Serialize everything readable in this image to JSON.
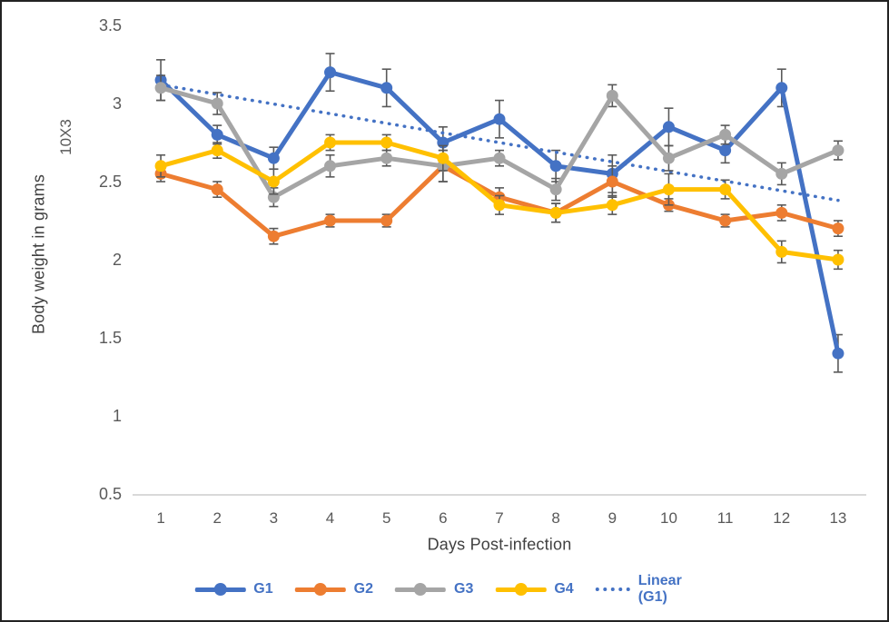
{
  "chart_data": {
    "type": "line",
    "title": "",
    "xlabel": "Days Post-infection",
    "ylabel": "Body weight in grams",
    "ylabel_units": "10X3",
    "x": [
      1,
      2,
      3,
      4,
      5,
      6,
      7,
      8,
      9,
      10,
      11,
      12,
      13
    ],
    "ylim": [
      0.5,
      3.5
    ],
    "y_ticks": [
      3.5,
      3,
      2.5,
      2,
      1.5,
      1,
      0.5
    ],
    "grid": false,
    "legend_position": "bottom",
    "error_bars": true,
    "series": [
      {
        "name": "G1",
        "color": "#4472C4",
        "values": [
          3.15,
          2.8,
          2.65,
          3.2,
          3.1,
          2.75,
          2.9,
          2.6,
          2.55,
          2.85,
          2.7,
          3.1,
          1.4
        ],
        "errors": [
          0.13,
          0.06,
          0.07,
          0.12,
          0.12,
          0.1,
          0.12,
          0.1,
          0.12,
          0.12,
          0.08,
          0.12,
          0.12
        ]
      },
      {
        "name": "G2",
        "color": "#ED7D31",
        "values": [
          2.55,
          2.45,
          2.15,
          2.25,
          2.25,
          2.6,
          2.4,
          2.3,
          2.5,
          2.35,
          2.25,
          2.3,
          2.2
        ],
        "errors": [
          0.05,
          0.05,
          0.05,
          0.04,
          0.04,
          0.1,
          0.06,
          0.06,
          0.1,
          0.04,
          0.04,
          0.05,
          0.05
        ]
      },
      {
        "name": "G3",
        "color": "#A5A5A5",
        "values": [
          3.1,
          3.0,
          2.4,
          2.6,
          2.65,
          2.6,
          2.65,
          2.45,
          3.05,
          2.65,
          2.8,
          2.55,
          2.7
        ],
        "errors": [
          0.08,
          0.07,
          0.06,
          0.07,
          0.05,
          0.1,
          0.05,
          0.07,
          0.07,
          0.08,
          0.06,
          0.07,
          0.06
        ]
      },
      {
        "name": "G4",
        "color": "#FFC000",
        "values": [
          2.6,
          2.7,
          2.5,
          2.75,
          2.75,
          2.65,
          2.35,
          2.3,
          2.35,
          2.45,
          2.45,
          2.05,
          2.0
        ],
        "errors": [
          0.07,
          0.05,
          0.08,
          0.05,
          0.05,
          0.08,
          0.06,
          0.06,
          0.06,
          0.1,
          0.06,
          0.07,
          0.06
        ]
      }
    ],
    "trendline": {
      "name": "Linear (G1)",
      "color": "#4472C4",
      "style": "dotted",
      "x_start": 1,
      "value_start": 3.12,
      "x_end": 13,
      "value_end": 2.38
    },
    "colors": {
      "error_bar": "#595959",
      "axis_line": "#D9D9D9",
      "tick_text": "#595959",
      "title_text": "#404040",
      "legend_text": "#4472C4"
    }
  }
}
